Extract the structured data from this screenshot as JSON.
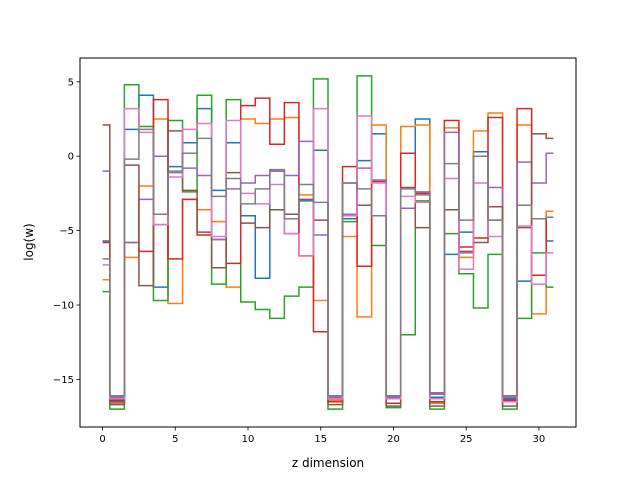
{
  "chart_data": {
    "type": "line",
    "drawstyle": "steps-mid",
    "title": "",
    "xlabel": "z dimension",
    "ylabel": "log(w)",
    "xlim": [
      -1.55,
      32.55
    ],
    "ylim": [
      -18.2,
      6.6
    ],
    "xticks": [
      0,
      5,
      10,
      15,
      20,
      25,
      30
    ],
    "yticks": [
      -15,
      -10,
      -5,
      0,
      5
    ],
    "grid": false,
    "legend": "none",
    "x": [
      0,
      1,
      2,
      3,
      4,
      5,
      6,
      7,
      8,
      9,
      10,
      11,
      12,
      13,
      14,
      15,
      16,
      17,
      18,
      19,
      20,
      21,
      22,
      23,
      24,
      25,
      26,
      27,
      28,
      29,
      30,
      31
    ],
    "series": [
      {
        "color": "#1f77b4",
        "values": [
          -5.7,
          -16.5,
          1.8,
          4.1,
          -8.8,
          -0.7,
          0.9,
          3.2,
          -2.3,
          0.9,
          -4.0,
          -8.2,
          -1.0,
          -5.2,
          -3.0,
          0.4,
          -16.3,
          -4.2,
          -0.3,
          1.5,
          -16.3,
          0.2,
          2.5,
          -16.2,
          -6.6,
          -5.1,
          0.3,
          -4.3,
          -16.3,
          -8.4,
          -4.2,
          -5.7
        ]
      },
      {
        "color": "#ff7f0e",
        "values": [
          -8.3,
          -16.6,
          -6.8,
          -2.0,
          2.5,
          -9.9,
          -2.9,
          -3.6,
          -4.4,
          -8.8,
          2.5,
          2.2,
          2.5,
          2.6,
          -2.6,
          -9.7,
          -16.4,
          -5.4,
          -10.8,
          2.1,
          -16.6,
          2.0,
          2.1,
          -16.6,
          1.9,
          -6.8,
          1.7,
          2.9,
          -16.5,
          2.1,
          -10.6,
          -3.7
        ]
      },
      {
        "color": "#2ca02c",
        "values": [
          -9.1,
          -17.0,
          4.8,
          2.0,
          -9.7,
          2.4,
          -2.4,
          4.1,
          -8.6,
          3.8,
          -9.8,
          -10.3,
          -10.9,
          -9.4,
          -8.8,
          5.2,
          -17.0,
          -4.4,
          5.4,
          -6.0,
          -16.9,
          -12.0,
          -3.0,
          -17.0,
          -5.2,
          -7.9,
          -10.2,
          -6.6,
          -17.0,
          -10.9,
          -6.5,
          -8.8
        ]
      },
      {
        "color": "#d62728",
        "values": [
          -5.8,
          -16.4,
          -5.8,
          -6.4,
          3.8,
          -6.9,
          -2.9,
          -5.3,
          -5.6,
          -7.2,
          3.4,
          3.9,
          0.8,
          3.6,
          -6.7,
          -11.8,
          -16.5,
          -0.7,
          -7.4,
          -1.7,
          -16.6,
          0.2,
          -2.5,
          -16.5,
          2.4,
          -6.1,
          -5.5,
          2.6,
          -16.4,
          3.2,
          -8.0,
          -4.1
        ]
      },
      {
        "color": "#9467bd",
        "values": [
          -1.0,
          -16.2,
          -5.8,
          -2.9,
          0.0,
          -1.0,
          -0.8,
          -1.3,
          -5.6,
          -2.2,
          -1.8,
          -1.3,
          -1.0,
          -1.3,
          1.0,
          -5.3,
          -16.2,
          -3.9,
          -0.8,
          -1.6,
          -16.2,
          -3.5,
          -2.4,
          -15.9,
          1.6,
          -6.5,
          0.0,
          -2.1,
          -16.2,
          -0.4,
          -1.8,
          0.2
        ]
      },
      {
        "color": "#8c564b",
        "values": [
          2.1,
          -16.7,
          -0.6,
          -8.7,
          -4.6,
          1.7,
          -2.3,
          -5.1,
          -7.5,
          -1.1,
          -4.5,
          -4.8,
          -3.6,
          -3.9,
          -2.9,
          -4.3,
          -16.7,
          -1.8,
          -3.3,
          -4.0,
          -16.8,
          -2.1,
          -4.8,
          -16.8,
          -3.6,
          -6.4,
          -5.8,
          -3.4,
          -16.8,
          -4.8,
          1.5,
          1.2
        ]
      },
      {
        "color": "#e377c2",
        "values": [
          -7.3,
          -16.3,
          3.2,
          1.6,
          -4.6,
          -1.4,
          1.8,
          2.2,
          -5.4,
          2.4,
          -2.5,
          -3.2,
          -1.9,
          -5.2,
          -6.7,
          3.2,
          -16.3,
          -4.0,
          2.7,
          -1.8,
          -16.3,
          -2.7,
          -3.1,
          -16.3,
          -1.5,
          -7.6,
          -1.8,
          -5.4,
          -16.5,
          -4.7,
          -8.6,
          -6.5
        ]
      },
      {
        "color": "#7f7f7f",
        "values": [
          -6.9,
          -16.1,
          -0.2,
          1.8,
          -3.9,
          -1.1,
          0.2,
          1.2,
          -2.7,
          -1.5,
          -3.2,
          -2.2,
          -0.9,
          -4.2,
          -1.9,
          -3.1,
          -16.1,
          -1.8,
          -2.2,
          -4.0,
          -16.1,
          -2.2,
          -2.6,
          -16.0,
          -0.5,
          -4.3,
          0.0,
          -4.3,
          -16.1,
          -3.3,
          -4.2,
          -4.1
        ]
      }
    ]
  }
}
